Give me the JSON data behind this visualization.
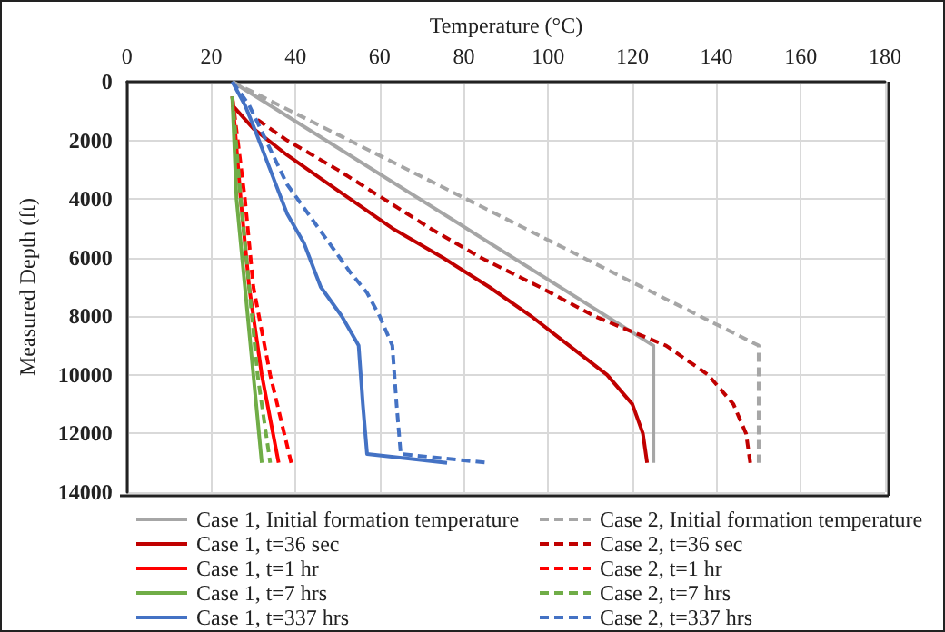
{
  "chart_data": {
    "type": "line",
    "xlabel": "Temperature (°C)",
    "ylabel": "Measured Depth (ft)",
    "xlim": [
      0,
      180
    ],
    "xticks": [
      0,
      20,
      40,
      60,
      80,
      100,
      120,
      140,
      160,
      180
    ],
    "ylim": [
      14000,
      0
    ],
    "yticks": [
      0,
      2000,
      4000,
      6000,
      8000,
      10000,
      12000,
      14000
    ],
    "grid": true,
    "legend": "bottom",
    "marker": "none",
    "series": [
      {
        "name": "Case 1, Initial formation temperature",
        "color": "#a6a6a6",
        "line_style": "solid",
        "x": [
          25,
          125,
          125
        ],
        "values": [
          0,
          9000,
          13000
        ]
      },
      {
        "name": "Case 2, Initial formation temperature",
        "color": "#a6a6a6",
        "line_style": "dashed",
        "x": [
          25,
          150,
          150
        ],
        "values": [
          0,
          9000,
          13000
        ]
      },
      {
        "name": "Case 1, t=36 sec",
        "color": "#c00000",
        "line_style": "solid",
        "x": [
          25,
          30,
          38,
          47,
          55,
          63,
          75,
          86,
          96,
          105,
          114,
          120,
          122.5,
          123.5
        ],
        "values": [
          800,
          1600,
          2500,
          3400,
          4200,
          5000,
          6000,
          7000,
          8000,
          9000,
          10000,
          11000,
          12000,
          13000
        ]
      },
      {
        "name": "Case 2, t=36 sec",
        "color": "#c00000",
        "line_style": "dashed",
        "x": [
          31,
          38,
          50,
          61,
          72,
          84,
          98,
          111,
          128,
          138,
          144,
          147,
          148
        ],
        "values": [
          1300,
          2000,
          3000,
          4000,
          5000,
          6000,
          7000,
          8000,
          9000,
          10000,
          11000,
          12000,
          13000
        ]
      },
      {
        "name": "Case 1, t=1 hr",
        "color": "#ff0000",
        "line_style": "solid",
        "x": [
          25,
          27,
          29,
          32,
          36
        ],
        "values": [
          500,
          4000,
          7000,
          10000,
          13000
        ]
      },
      {
        "name": "Case 2, t=1 hr",
        "color": "#ff0000",
        "line_style": "dashed",
        "x": [
          25,
          28,
          30,
          34,
          39
        ],
        "values": [
          500,
          4000,
          7000,
          10000,
          13000
        ]
      },
      {
        "name": "Case 1, t=7 hrs",
        "color": "#70ad47",
        "line_style": "solid",
        "x": [
          25,
          26,
          28,
          30,
          32
        ],
        "values": [
          500,
          4000,
          7000,
          10000,
          13000
        ]
      },
      {
        "name": "Case 2, t=7 hrs",
        "color": "#70ad47",
        "line_style": "dashed",
        "x": [
          25,
          27,
          29,
          31,
          34
        ],
        "values": [
          500,
          4000,
          7000,
          10000,
          13000
        ]
      },
      {
        "name": "Case 1, t=337 hrs",
        "color": "#4472c4",
        "line_style": "solid",
        "x": [
          25,
          28,
          30,
          34,
          38,
          42,
          46,
          51,
          55,
          56,
          57,
          76
        ],
        "values": [
          0,
          800,
          1500,
          3000,
          4500,
          5500,
          7000,
          8000,
          9000,
          11000,
          12700,
          13000
        ]
      },
      {
        "name": "Case 2, t=337 hrs",
        "color": "#4472c4",
        "line_style": "dashed",
        "x": [
          25,
          29,
          33,
          38,
          43,
          47,
          53,
          57,
          60,
          63,
          64,
          65,
          86
        ],
        "values": [
          0,
          800,
          2000,
          3500,
          4500,
          5300,
          6500,
          7200,
          8000,
          9000,
          11000,
          12700,
          13000
        ]
      }
    ]
  }
}
